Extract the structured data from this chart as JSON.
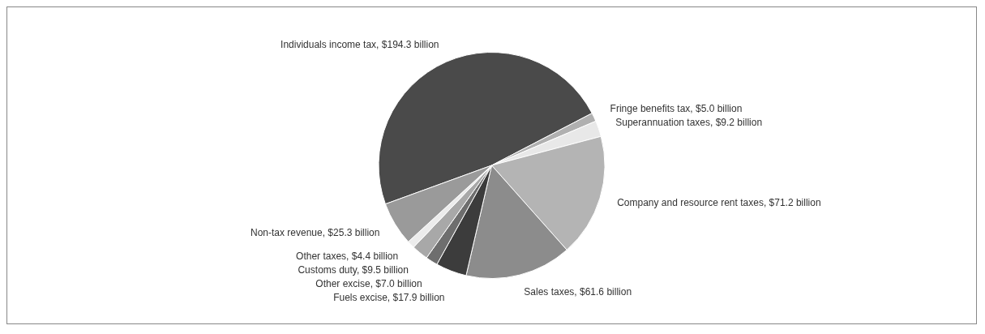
{
  "chart_data": {
    "type": "pie",
    "categories": [
      "Individuals income tax, $194.3 billion",
      "Fringe benefits tax, $5.0 billion",
      "Superannuation taxes, $9.2 billion",
      "Company and resource rent taxes, $71.2 billion",
      "Sales taxes, $61.6 billion",
      "Fuels excise, $17.9 billion",
      "Other excise, $7.0 billion",
      "Customs duty, $9.5 billion",
      "Other taxes, $4.4 billion",
      "Non-tax revenue, $25.3 billion"
    ],
    "values": [
      194.3,
      5.0,
      9.2,
      71.2,
      61.6,
      17.9,
      7.0,
      9.5,
      4.4,
      25.3
    ],
    "colors": [
      "#4a4a4a",
      "#b0b0b0",
      "#e8e8e8",
      "#b4b4b4",
      "#8c8c8c",
      "#3c3c3c",
      "#6e6e6e",
      "#a8a8a8",
      "#ececec",
      "#9a9a9a"
    ],
    "legend": false
  }
}
